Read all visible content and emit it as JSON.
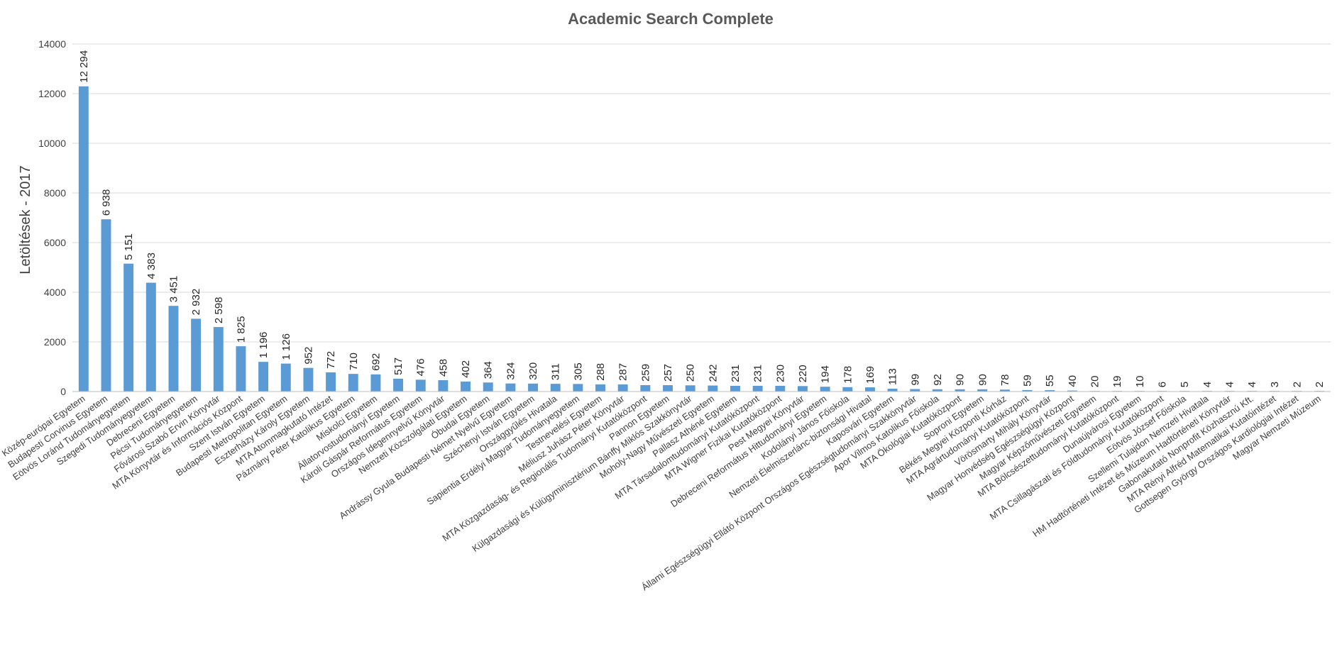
{
  "chart_data": {
    "type": "bar",
    "title": "Academic Search Complete",
    "xlabel": "",
    "ylabel": "Letöltések - 2017",
    "ylim": [
      0,
      14000
    ],
    "yticks": [
      0,
      2000,
      4000,
      6000,
      8000,
      10000,
      12000,
      14000
    ],
    "grid": true,
    "bar_color": "#5b9bd5",
    "categories": [
      "Közép-európai Egyetem",
      "Budapesti Corvinus Egyetem",
      "Eötvös Loránd Tudományegyetem",
      "Szegedi Tudományegyetem",
      "Debreceni Egyetem",
      "Pécsi Tudományegyetem",
      "Fővárosi Szabó Ervin Könyvtár",
      "MTA Könyvtár és Információs Központ",
      "Szent István Egyetem",
      "Budapesti Metropolitan Egyetem",
      "Eszterházy Károly Egyetem",
      "MTA Atommagkutató Intézet",
      "Pázmány Péter Katolikus Egyetem",
      "Miskolci Egyetem",
      "Állatorvostudományi Egyetem",
      "Károli Gáspár Református Egyetem",
      "Országos Idegennyelvű Könyvtár",
      "Nemzeti Közszolgálati Egyetem",
      "Óbudai Egyetem",
      "Andrássy Gyula Budapesti Német Nyelvű Egyetem",
      "Széchenyi István Egyetem",
      "Országgyűlés Hivatala",
      "Sapientia Erdélyi Magyar Tudományegyetem",
      "Testnevelési Egyetem",
      "Méliusz Juhász Péter Könyvtár",
      "MTA Közgazdaság- és Regionális Tudományi Kutatóközpont",
      "Pannon Egyetem",
      "Külgazdasági és Külügyminisztérium Bánffy Miklós Szakkönyvtár",
      "Moholy-Nagy Művészeti Egyetem",
      "Pallasz Athéné Egyetem",
      "MTA Társadalomtudományi Kutatóközpont",
      "MTA Wigner Fizikai Kutatóközpont",
      "Pest Megyei Könyvtár",
      "Debreceni Református Hittudományi Egyetem",
      "Kodolányi János Főiskola",
      "Nemzeti Élelmiszerlánc-biztonsági Hivatal",
      "Kaposvári Egyetem",
      "Állami Egészségügyi Ellátó Központ Országos Egészségtudományi Szakkönyvtár",
      "Apor Vilmos Katolikus Főiskola",
      "MTA Ökológiai Kutatóközpont",
      "Soproni Egyetem",
      "Békés Megyei Központi Kórház",
      "MTA Agrártudományi Kutatóközpont",
      "Vörösmarty Mihály Könyvtár",
      "Magyar Honvédség Egészségügyi Központ",
      "Magyar Képzőművészeti Egyetem",
      "MTA Bölcsészettudományi Kutatóközpont",
      "Dunaújvárosi Egyetem",
      "MTA Csillagászati és Földtudományi Kutatóközpont",
      "Eötvös József Főiskola",
      "Szellemi Tulajdon Nemzeti Hivatala",
      "HM Hadtörténeti Intézet és Múzeum Hadtörténeti Könyvtár",
      "Gabonakutató Nonprofit Közhasznú Kft.",
      "MTA Rényi Alfréd Matematikai Kutatóintézet",
      "Gottsegen György Országos Kardiológiai Intézet",
      "Magyar Nemzeti Múzeum"
    ],
    "values": [
      12294,
      6938,
      5151,
      4383,
      3451,
      2932,
      2598,
      1825,
      1196,
      1126,
      952,
      772,
      710,
      692,
      517,
      476,
      458,
      402,
      364,
      324,
      320,
      311,
      305,
      288,
      287,
      259,
      257,
      250,
      242,
      231,
      231,
      230,
      220,
      194,
      178,
      169,
      113,
      99,
      92,
      90,
      90,
      78,
      59,
      55,
      40,
      20,
      19,
      10,
      6,
      5,
      4,
      4,
      4,
      3,
      2,
      2
    ],
    "value_labels": [
      "12 294",
      "6 938",
      "5 151",
      "4 383",
      "3 451",
      "2 932",
      "2 598",
      "1 825",
      "1 196",
      "1 126",
      "952",
      "772",
      "710",
      "692",
      "517",
      "476",
      "458",
      "402",
      "364",
      "324",
      "320",
      "311",
      "305",
      "288",
      "287",
      "259",
      "257",
      "250",
      "242",
      "231",
      "231",
      "230",
      "220",
      "194",
      "178",
      "169",
      "113",
      "99",
      "92",
      "90",
      "90",
      "78",
      "59",
      "55",
      "40",
      "20",
      "19",
      "10",
      "6",
      "5",
      "4",
      "4",
      "4",
      "3",
      "2",
      "2"
    ]
  }
}
